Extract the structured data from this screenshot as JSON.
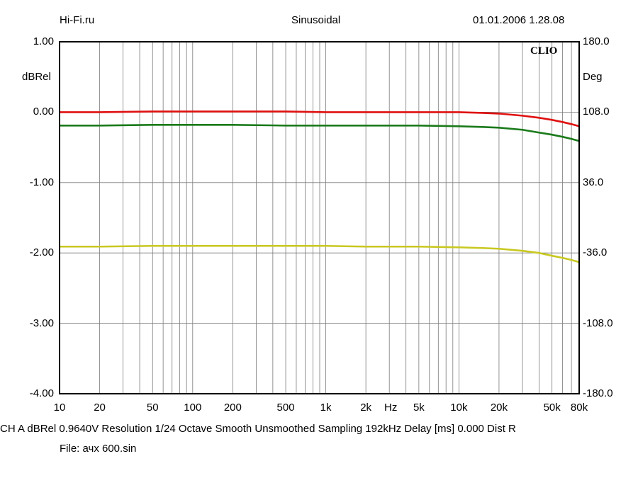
{
  "header": {
    "left": "Hi-Fi.ru",
    "center": "Sinusoidal",
    "right": "01.01.2006 1.28.08"
  },
  "brand": "CLIO",
  "footer": {
    "line1": "CH A   dBRel 0.9640V  Resolution 1/24 Octave   Smooth Unsmoothed   Sampling 192kHz   Delay [ms] 0.000    Dist R",
    "line2": "File: ачх 600.sin"
  },
  "chart_data": {
    "type": "line",
    "xscale": "log",
    "xlim": [
      10,
      80000
    ],
    "ylim": [
      -4,
      1
    ],
    "y2lim": [
      -180,
      180
    ],
    "grid": true,
    "ylabel": "dBRel",
    "y2label": "Deg",
    "xunit": "Hz",
    "x_tick_labels": [
      {
        "v": 10,
        "t": "10"
      },
      {
        "v": 20,
        "t": "20"
      },
      {
        "v": 50,
        "t": "50"
      },
      {
        "v": 100,
        "t": "100"
      },
      {
        "v": 200,
        "t": "200"
      },
      {
        "v": 500,
        "t": "500"
      },
      {
        "v": 1000,
        "t": "1k"
      },
      {
        "v": 2000,
        "t": "2k"
      },
      {
        "v": 5000,
        "t": "5k"
      },
      {
        "v": 10000,
        "t": "10k"
      },
      {
        "v": 20000,
        "t": "20k"
      },
      {
        "v": 50000,
        "t": "50k"
      },
      {
        "v": 80000,
        "t": "80k"
      }
    ],
    "y_tick_labels": [
      {
        "v": 1,
        "t": "1.00"
      },
      {
        "v": 0,
        "t": "0.00"
      },
      {
        "v": -1,
        "t": "-1.00"
      },
      {
        "v": -2,
        "t": "-2.00"
      },
      {
        "v": -3,
        "t": "-3.00"
      },
      {
        "v": -4,
        "t": "-4.00"
      }
    ],
    "y2_tick_labels": [
      {
        "v": 180,
        "t": "180.0"
      },
      {
        "v": 108,
        "t": "108.0"
      },
      {
        "v": 36,
        "t": "36.0"
      },
      {
        "v": -36,
        "t": "-36.0"
      },
      {
        "v": -108,
        "t": "-108.0"
      },
      {
        "v": -180,
        "t": "-180.0"
      }
    ],
    "series": [
      {
        "color": "#e01010",
        "x": [
          10,
          20,
          50,
          100,
          200,
          500,
          1000,
          2000,
          5000,
          10000,
          15000,
          20000,
          30000,
          40000,
          50000,
          60000,
          70000,
          80000
        ],
        "y": [
          0.0,
          0.0,
          0.01,
          0.01,
          0.01,
          0.01,
          0.0,
          0.0,
          0.0,
          0.0,
          -0.01,
          -0.02,
          -0.05,
          -0.08,
          -0.11,
          -0.14,
          -0.17,
          -0.2
        ]
      },
      {
        "color": "#1a7a1a",
        "x": [
          10,
          20,
          50,
          100,
          200,
          500,
          1000,
          2000,
          5000,
          10000,
          15000,
          20000,
          30000,
          40000,
          50000,
          60000,
          70000,
          80000
        ],
        "y": [
          -0.19,
          -0.19,
          -0.18,
          -0.18,
          -0.18,
          -0.19,
          -0.19,
          -0.19,
          -0.19,
          -0.2,
          -0.21,
          -0.22,
          -0.25,
          -0.29,
          -0.32,
          -0.35,
          -0.38,
          -0.41
        ]
      },
      {
        "color": "#c8c820",
        "x": [
          10,
          20,
          50,
          100,
          200,
          500,
          1000,
          2000,
          5000,
          10000,
          15000,
          20000,
          30000,
          40000,
          50000,
          60000,
          70000,
          80000
        ],
        "y": [
          -1.91,
          -1.91,
          -1.9,
          -1.9,
          -1.9,
          -1.9,
          -1.9,
          -1.91,
          -1.91,
          -1.92,
          -1.93,
          -1.94,
          -1.97,
          -2.0,
          -2.04,
          -2.07,
          -2.1,
          -2.13
        ]
      }
    ]
  }
}
